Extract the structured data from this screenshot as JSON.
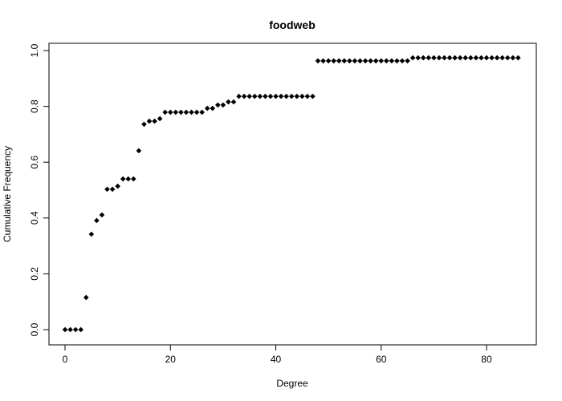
{
  "chart_data": {
    "type": "scatter",
    "title": "foodweb",
    "x_label": "Degree",
    "y_label": "Cumulative Frequency",
    "x": [
      0,
      1,
      2,
      3,
      4,
      5,
      6,
      7,
      8,
      9,
      10,
      11,
      12,
      13,
      14,
      15,
      16,
      17,
      18,
      19,
      20,
      21,
      22,
      23,
      24,
      25,
      26,
      27,
      28,
      29,
      30,
      31,
      32,
      33,
      34,
      35,
      36,
      37,
      38,
      39,
      40,
      41,
      42,
      43,
      44,
      45,
      46,
      47,
      48,
      49,
      50,
      51,
      52,
      53,
      54,
      55,
      56,
      57,
      58,
      59,
      60,
      61,
      62,
      63,
      64,
      65,
      66,
      67,
      68,
      69,
      70,
      71,
      72,
      73,
      74,
      75,
      76,
      77,
      78,
      79,
      80,
      81,
      82,
      83,
      84,
      85,
      86
    ],
    "values": [
      0,
      0,
      0,
      0,
      0.115,
      0.342,
      0.391,
      0.411,
      0.503,
      0.503,
      0.514,
      0.54,
      0.54,
      0.54,
      0.641,
      0.736,
      0.747,
      0.747,
      0.756,
      0.779,
      0.779,
      0.779,
      0.779,
      0.779,
      0.779,
      0.779,
      0.779,
      0.793,
      0.793,
      0.805,
      0.805,
      0.816,
      0.816,
      0.836,
      0.836,
      0.836,
      0.836,
      0.836,
      0.836,
      0.836,
      0.836,
      0.836,
      0.836,
      0.836,
      0.836,
      0.836,
      0.836,
      0.836,
      0.963,
      0.963,
      0.963,
      0.963,
      0.963,
      0.963,
      0.963,
      0.963,
      0.963,
      0.963,
      0.963,
      0.963,
      0.963,
      0.963,
      0.963,
      0.963,
      0.963,
      0.963,
      0.974,
      0.974,
      0.974,
      0.974,
      0.974,
      0.974,
      0.974,
      0.974,
      0.974,
      0.974,
      0.974,
      0.974,
      0.974,
      0.974,
      0.974,
      0.974,
      0.974,
      0.974,
      0.974,
      0.974,
      0.974
    ],
    "color": "#000000",
    "xlim": [
      -3.05,
      89.45
    ],
    "ylim": [
      -0.0546,
      1.026
    ],
    "xticks": [
      0,
      20,
      40,
      60,
      80
    ],
    "yticks": [
      {
        "value": 0,
        "label": "0.0"
      },
      {
        "value": 0.2,
        "label": "0.2"
      },
      {
        "value": 0.4,
        "label": "0.4"
      },
      {
        "value": 0.6,
        "label": "0.6"
      },
      {
        "value": 0.8,
        "label": "0.8"
      },
      {
        "value": 1,
        "label": "1.0"
      }
    ]
  }
}
